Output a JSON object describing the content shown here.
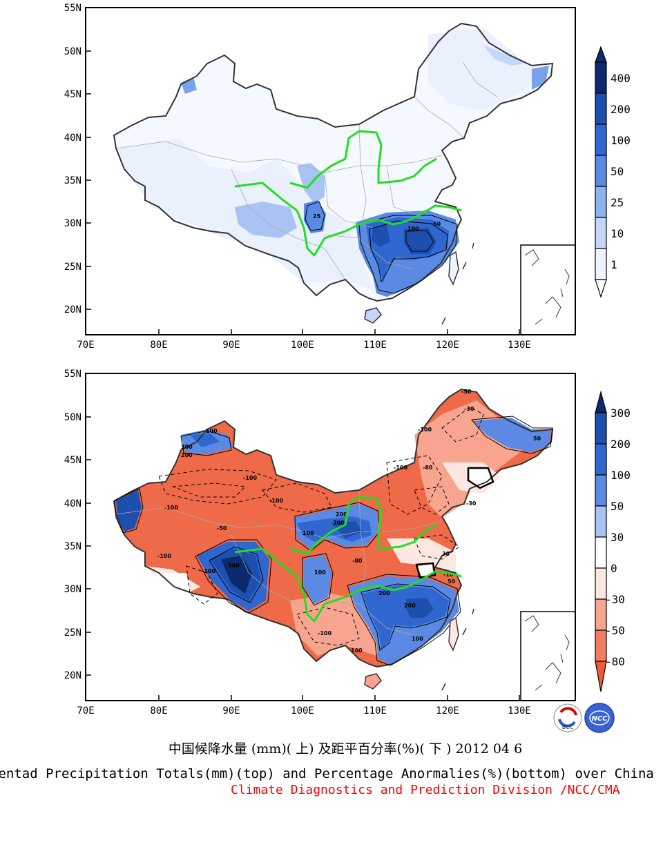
{
  "top_map": {
    "lat_labels": [
      "55N",
      "50N",
      "45N",
      "40N",
      "35N",
      "30N",
      "25N",
      "20N"
    ],
    "lon_labels": [
      "70E",
      "80E",
      "90E",
      "100E",
      "110E",
      "120E",
      "130E"
    ],
    "contour_labels": [
      "25",
      "50",
      "100"
    ],
    "colorbar": {
      "levels": [
        "400",
        "200",
        "100",
        "50",
        "25",
        "10",
        "1"
      ],
      "colors": [
        "#0c2a6e",
        "#1d4fae",
        "#2f66d0",
        "#5a8ae3",
        "#8eb1f0",
        "#c4d7f8",
        "#eef4fe",
        "#ffffff"
      ]
    }
  },
  "bottom_map": {
    "lat_labels": [
      "55N",
      "50N",
      "45N",
      "40N",
      "35N",
      "30N",
      "25N",
      "20N"
    ],
    "lon_labels": [
      "70E",
      "80E",
      "90E",
      "100E",
      "110E",
      "120E",
      "130E"
    ],
    "contour_labels": [
      "-50",
      "-100",
      "-30",
      "-80",
      "100",
      "200",
      "300",
      "50",
      "-10",
      "30"
    ],
    "colorbar": {
      "levels": [
        "300",
        "200",
        "100",
        "50",
        "30",
        "0",
        "-30",
        "-50",
        "-80"
      ],
      "colors": [
        "#0c2a6e",
        "#1d4fae",
        "#2f66d0",
        "#5a8ae3",
        "#a9c3f3",
        "#ffffff",
        "#fde8e1",
        "#f8a58f",
        "#f37c5f",
        "#ef5a37"
      ]
    }
  },
  "logos": {
    "left": "BCC",
    "right": "NCC"
  },
  "caption_cn": "中国候降水量 (mm)( 上) 及距平百分率(%)( 下 ) 2012 04 6",
  "caption_en": "Pentad Precipitation Totals(mm)(top) and Percentage Anormalies(%)(bottom) over China",
  "caption_division": "Climate Diagnostics and Prediction Division /NCC/CMA"
}
